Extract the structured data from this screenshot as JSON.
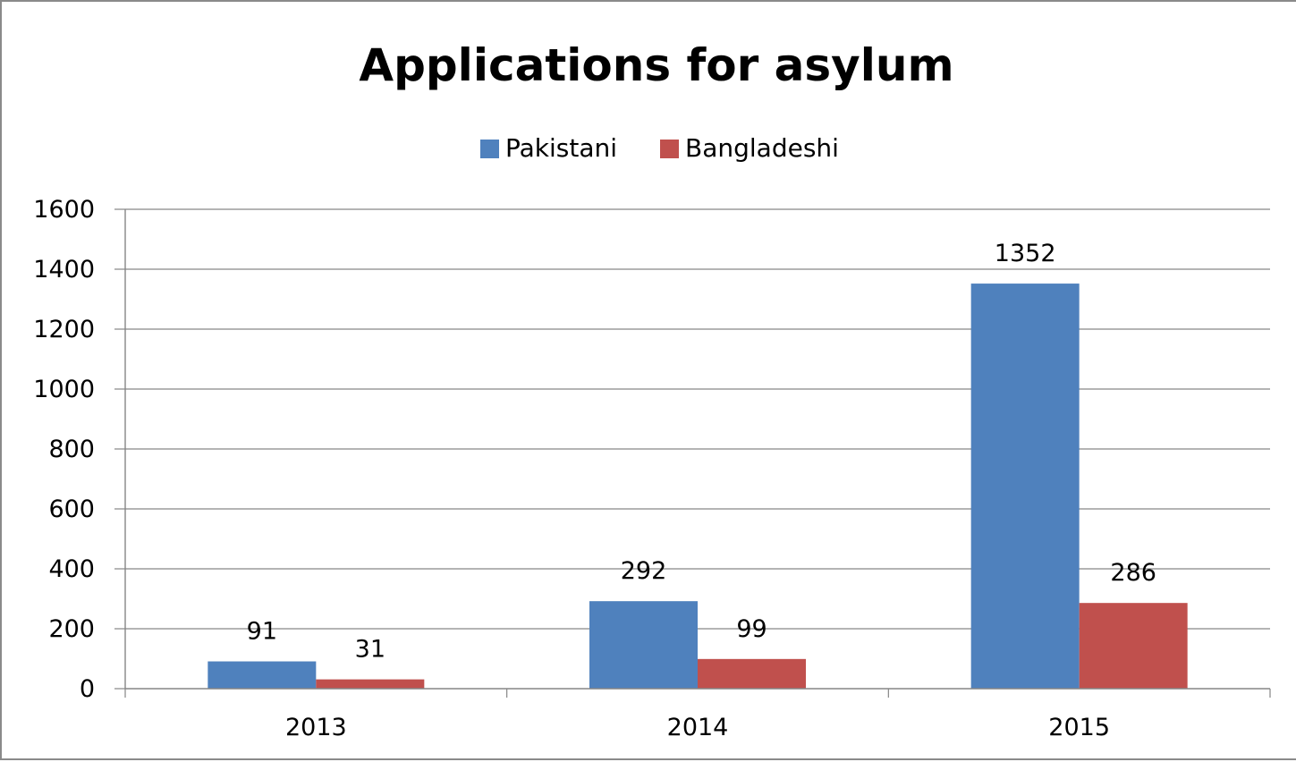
{
  "chart_data": {
    "type": "bar",
    "title": "Applications for asylum",
    "xlabel": "",
    "ylabel": "",
    "categories": [
      "2013",
      "2014",
      "2015"
    ],
    "series": [
      {
        "name": "Pakistani",
        "color": "#4f81bd",
        "values": [
          91,
          292,
          1352
        ]
      },
      {
        "name": "Bangladeshi",
        "color": "#c0504d",
        "values": [
          31,
          99,
          286
        ]
      }
    ],
    "ylim": [
      0,
      1600
    ],
    "yticks": [
      0,
      200,
      400,
      600,
      800,
      1000,
      1200,
      1400,
      1600
    ],
    "grid": true,
    "legend_position": "top"
  }
}
